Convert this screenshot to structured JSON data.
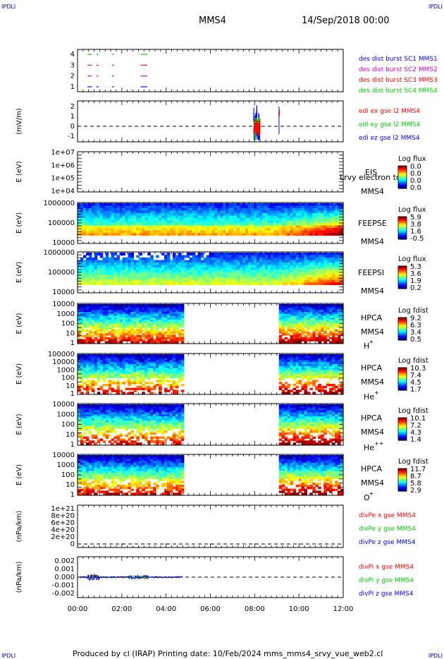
{
  "corners": {
    "top_left": "IPDLI",
    "top_right": "IPDLI",
    "bottom_left": "IPDLI",
    "bottom_right": "IPDLI"
  },
  "header": {
    "spacecraft": "MMS4",
    "datetime": "14/Sep/2018 00:00"
  },
  "footer": {
    "text": "Produced by cl (IRAP)   Printing date: 10/Feb/2024   mms_mms4_srvy_vue_web2.cl"
  },
  "colors": {
    "red": "#ff0000",
    "green": "#00cc00",
    "blue": "#0000ff",
    "magenta": "#cc00cc",
    "grey": "#d3d3d3"
  },
  "chart_data": [
    {
      "type": "scatter",
      "id": "burst",
      "yticks": [
        "1",
        "2",
        "3",
        "4"
      ],
      "ylim": [
        0.5,
        4.5
      ],
      "legend": [
        {
          "text": "des dist burst SC1 MMS1",
          "color": "#0000ff"
        },
        {
          "text": "des dist burst SC2 MMS2",
          "color": "#cc00cc"
        },
        {
          "text": "des dist burst SC3 MMS3",
          "color": "#ff0000"
        },
        {
          "text": "des dist burst SC4 MMS4",
          "color": "#00cc00"
        }
      ],
      "series": [
        {
          "level": 4,
          "x": [
            0.5,
            0.6,
            0.9,
            1.6,
            2.9,
            3.0,
            3.1
          ],
          "color": "#00cc00"
        },
        {
          "level": 3,
          "x": [
            0.5,
            0.6,
            0.9,
            1.6,
            2.9,
            3.0,
            3.1
          ],
          "color": "#ff0000"
        },
        {
          "level": 2,
          "x": [
            0.5,
            0.6,
            0.9,
            1.6,
            2.9,
            3.0,
            3.1
          ],
          "color": "#cc00cc"
        },
        {
          "level": 1,
          "x": [
            0.5,
            0.6,
            0.9,
            1.6,
            2.9,
            3.0,
            3.1
          ],
          "color": "#0000ff"
        }
      ]
    },
    {
      "type": "line",
      "id": "edi",
      "ylabel": "(mV/m)",
      "yticks": [
        "-1",
        "0",
        "1",
        "2"
      ],
      "ylim": [
        -1.5,
        2.5
      ],
      "legend": [
        {
          "text": "edi ex gse l2 MMS4",
          "color": "#ff0000"
        },
        {
          "text": "edi ey gse l2 MMS4",
          "color": "#00cc00"
        },
        {
          "text": "edi ez gse l2 MMS4",
          "color": "#0000ff"
        }
      ]
    },
    {
      "type": "heatmap",
      "id": "eis",
      "ylabel": "E (eV)",
      "yticks": [
        "1e+04",
        "1e+05",
        "1e+06",
        "1e+07"
      ],
      "labels": [
        "EIS",
        "MMS4"
      ],
      "overlay": "Lrvy electron tc",
      "colorbar": {
        "title": "Log flux",
        "ticks": [
          "0.0",
          "0.0",
          "0.0",
          "0.0"
        ]
      }
    },
    {
      "type": "heatmap",
      "id": "feepse",
      "ylabel": "E (eV)",
      "yticks": [
        "10000",
        "100000",
        "1000000"
      ],
      "labels": [
        "FEEPSE",
        "MMS4"
      ],
      "colorbar": {
        "title": "Log flux",
        "ticks": [
          "5.9",
          "3.8",
          "1.6",
          "-0.5"
        ]
      }
    },
    {
      "type": "heatmap",
      "id": "feepsi",
      "ylabel": "E (eV)",
      "yticks": [
        "10000",
        "100000",
        "1000000"
      ],
      "labels": [
        "FEEPSI",
        "MMS4"
      ],
      "colorbar": {
        "title": "Log flux",
        "ticks": [
          "5.3",
          "3.6",
          "1.9",
          "0.2"
        ]
      }
    },
    {
      "type": "heatmap",
      "id": "hpca_h",
      "ylabel": "E (eV)",
      "yticks": [
        "1",
        "10",
        "100",
        "1000",
        "10000"
      ],
      "labels": [
        "HPCA",
        "MMS4"
      ],
      "species": "H",
      "species_sup": "+",
      "coverage_hours": [
        [
          0,
          4.8
        ],
        [
          9.1,
          12
        ]
      ],
      "colorbar": {
        "title": "Log fdist",
        "ticks": [
          "9.2",
          "6.3",
          "3.4",
          "0.5"
        ]
      }
    },
    {
      "type": "heatmap",
      "id": "hpca_he",
      "ylabel": "E (eV)",
      "yticks": [
        "1",
        "10",
        "100",
        "1000",
        "10000",
        "100000"
      ],
      "labels": [
        "HPCA",
        "MMS4"
      ],
      "species": "He",
      "species_sup": "+",
      "coverage_hours": [
        [
          0,
          4.8
        ],
        [
          9.1,
          12
        ]
      ],
      "colorbar": {
        "title": "Log fdist",
        "ticks": [
          "10.3",
          "7.4",
          "4.5",
          "1.7"
        ]
      }
    },
    {
      "type": "heatmap",
      "id": "hpca_hepp",
      "ylabel": "E (eV)",
      "yticks": [
        "1",
        "10",
        "100",
        "1000",
        "10000"
      ],
      "labels": [
        "HPCA",
        "MMS4"
      ],
      "species": "He",
      "species_sup": "++",
      "coverage_hours": [
        [
          0,
          4.8
        ],
        [
          9.1,
          12
        ]
      ],
      "colorbar": {
        "title": "Log fdist",
        "ticks": [
          "10.1",
          "7.2",
          "4.3",
          "1.4"
        ]
      }
    },
    {
      "type": "heatmap",
      "id": "hpca_o",
      "ylabel": "E (eV)",
      "yticks": [
        "1",
        "10",
        "100",
        "1000",
        "10000"
      ],
      "labels": [
        "HPCA",
        "MMS4"
      ],
      "species": "O",
      "species_sup": "+",
      "coverage_hours": [
        [
          0,
          4.8
        ],
        [
          9.1,
          12
        ]
      ],
      "colorbar": {
        "title": "Log fdist",
        "ticks": [
          "11.7",
          "8.7",
          "5.8",
          "2.9"
        ]
      }
    },
    {
      "type": "line",
      "id": "divpe",
      "ylabel": "(nPa/km)",
      "yticks": [
        "0",
        "2e+20",
        "4e+20",
        "6e+20",
        "8e+20",
        "1e+21"
      ],
      "ylim": [
        0,
        1e+21
      ],
      "legend": [
        {
          "text": "divPe x gse MMS4",
          "color": "#ff0000"
        },
        {
          "text": "divPe y gse MMS4",
          "color": "#00cc00"
        },
        {
          "text": "divPe z gse MMS4",
          "color": "#0000ff"
        }
      ]
    },
    {
      "type": "line",
      "id": "divpi",
      "ylabel": "(nPa/km)",
      "yticks": [
        "-0.002",
        "-0.001",
        "0.000",
        "0.001",
        "0.002"
      ],
      "ylim": [
        -0.0025,
        0.0025
      ],
      "legend": [
        {
          "text": "divPi x gse MMS4",
          "color": "#ff0000"
        },
        {
          "text": "divPi y gse MMS4",
          "color": "#00cc00"
        },
        {
          "text": "divPi z gse MMS4",
          "color": "#0000ff"
        }
      ]
    }
  ],
  "time_axis": {
    "range_hours": [
      0,
      12
    ],
    "ticks": [
      "00:00",
      "02:00",
      "04:00",
      "06:00",
      "08:00",
      "10:00",
      "12:00"
    ]
  }
}
